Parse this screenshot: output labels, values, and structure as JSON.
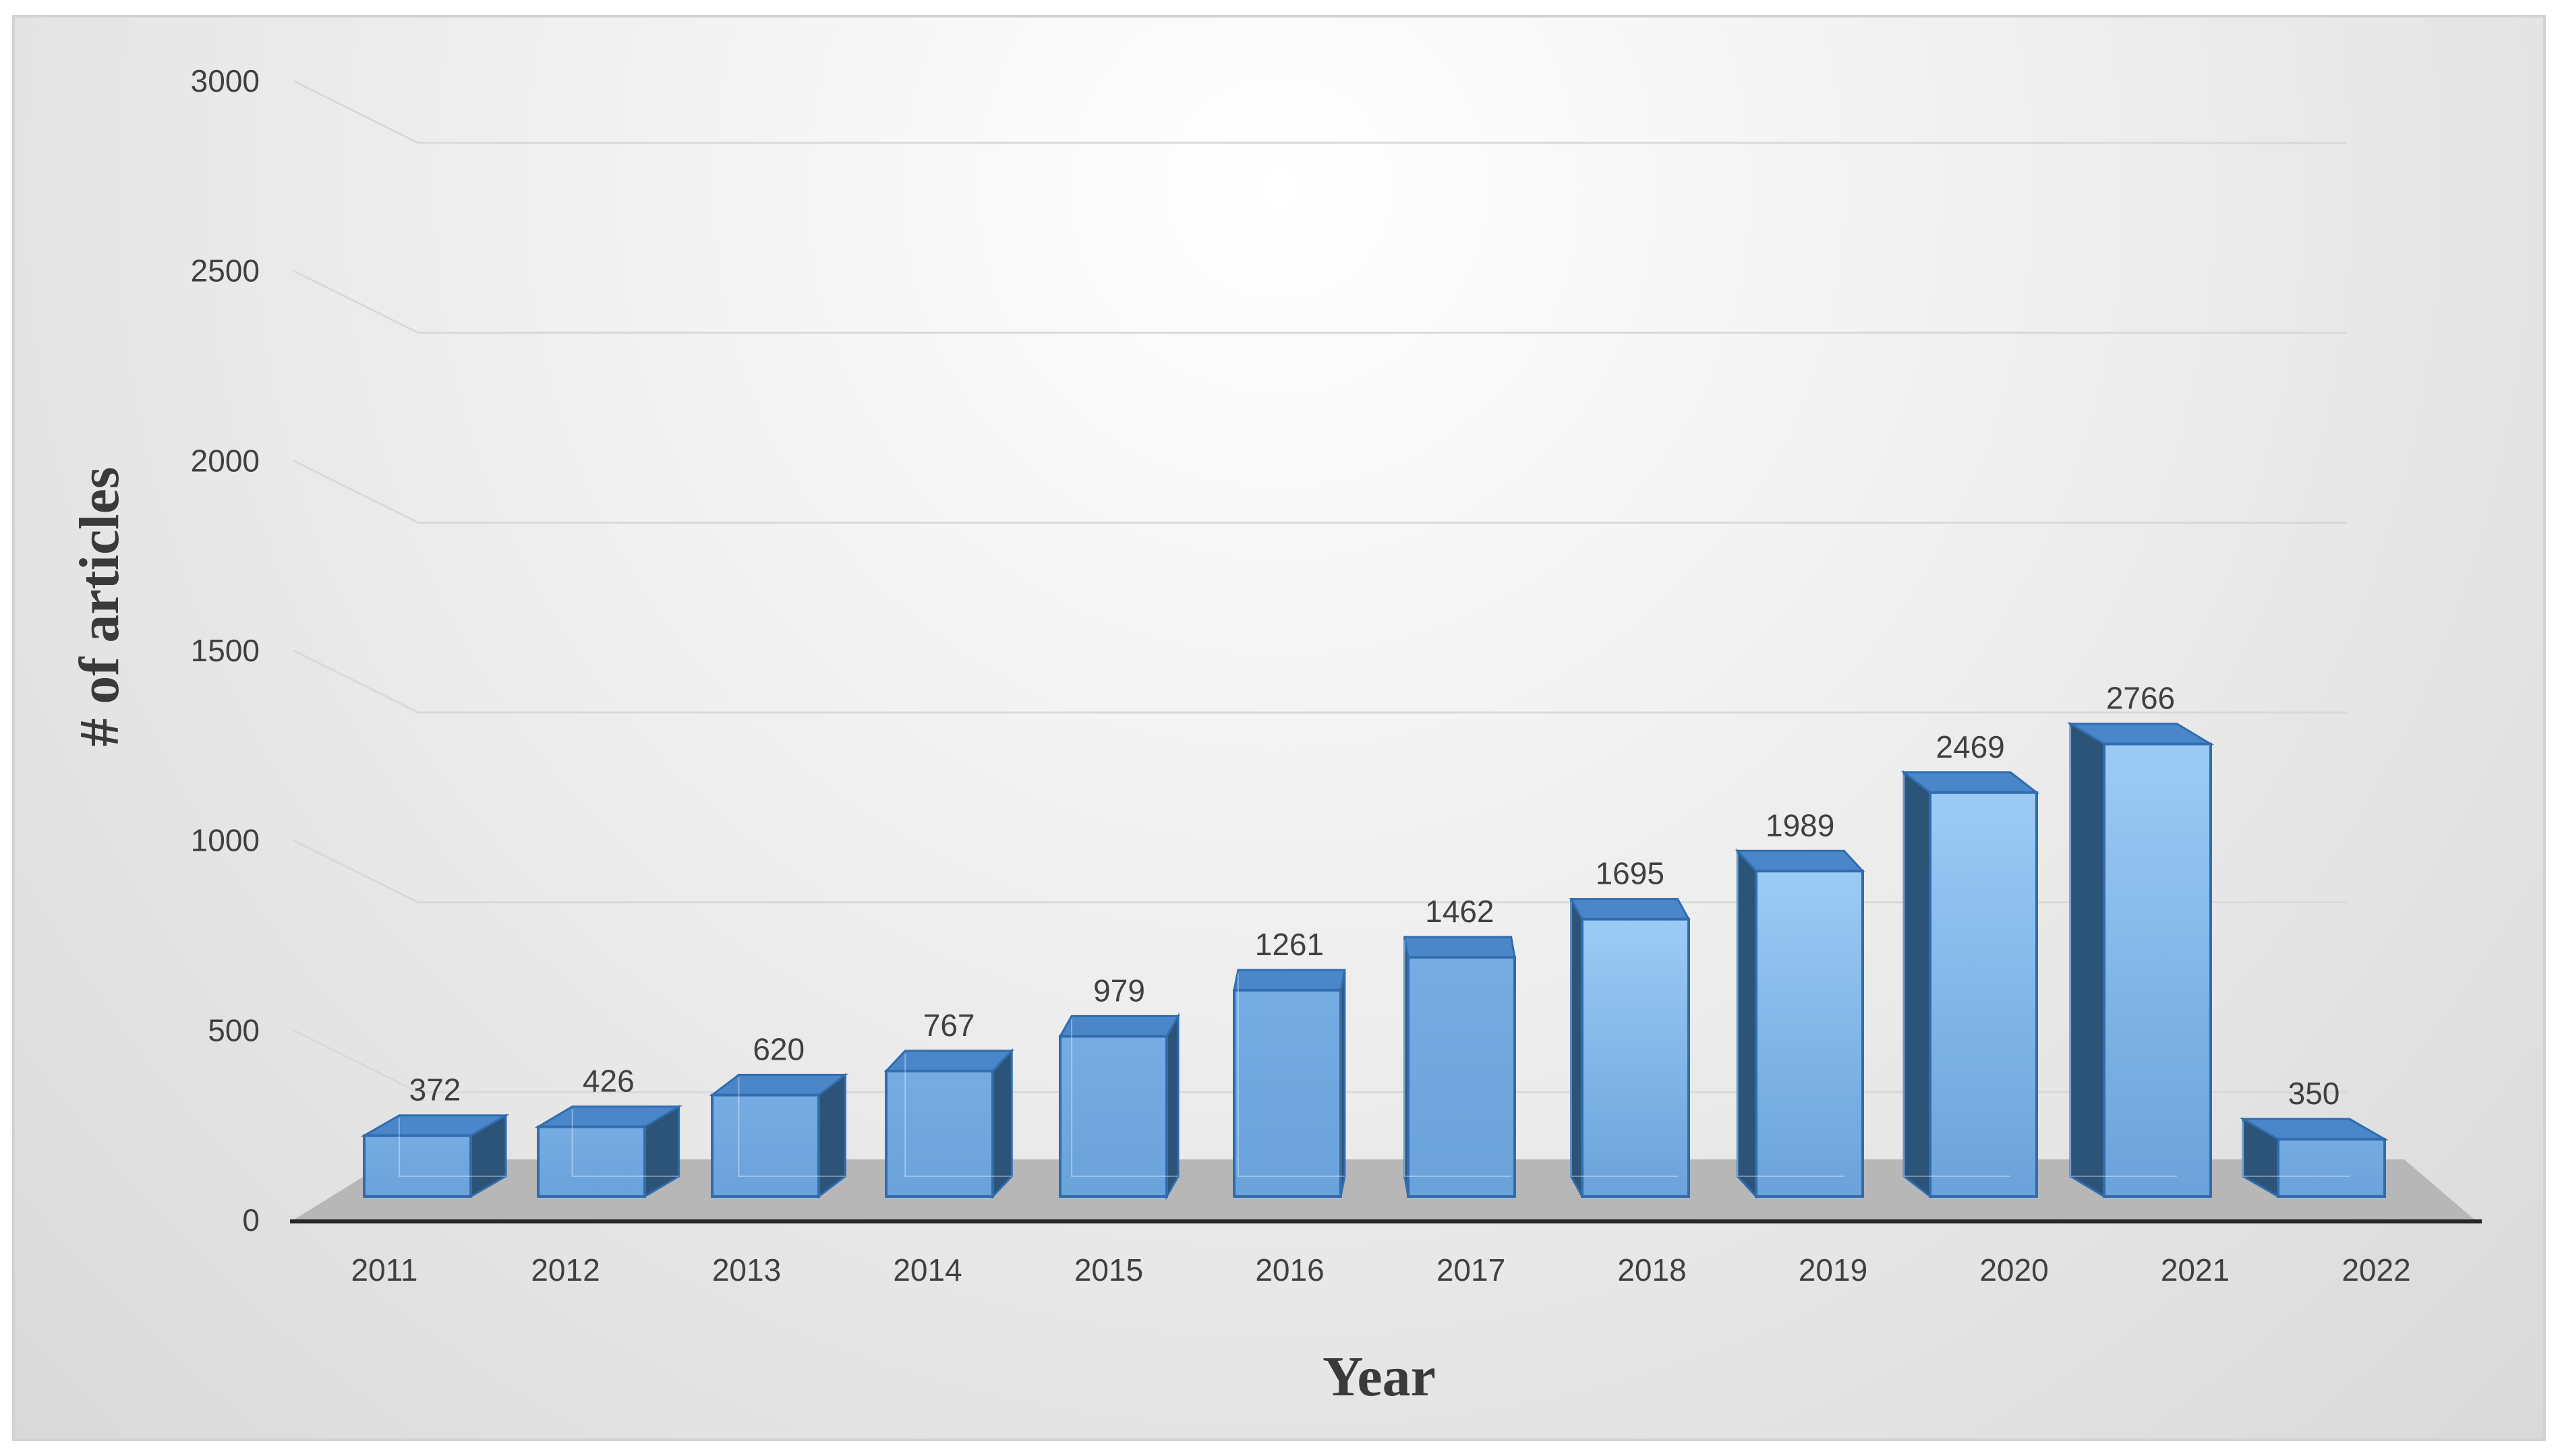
{
  "chart_data": {
    "type": "bar",
    "style": "3d-column",
    "categories": [
      "2011",
      "2012",
      "2013",
      "2014",
      "2015",
      "2016",
      "2017",
      "2018",
      "2019",
      "2020",
      "2021",
      "2022"
    ],
    "series": [
      {
        "values": [
          372,
          426,
          620,
          767,
          979,
          1261,
          1462,
          1695,
          1989,
          2469,
          2766,
          350
        ]
      }
    ],
    "xlabel": "Year",
    "ylabel": "# of articles",
    "ylim": [
      0,
      3000
    ],
    "yticks": [
      0,
      500,
      1000,
      1500,
      2000,
      2500,
      3000
    ],
    "grid": true,
    "legend": "none",
    "colors": {
      "bar_front": "#6fa8e0",
      "bar_front_light": "#9ccbf5",
      "bar_top": "#4a86c8",
      "bar_side": "#2c5478",
      "bar_edge": "#2f6db0",
      "floor": "#b7b7b7",
      "axis": "#262626",
      "grid": "#d9d9d9"
    }
  }
}
